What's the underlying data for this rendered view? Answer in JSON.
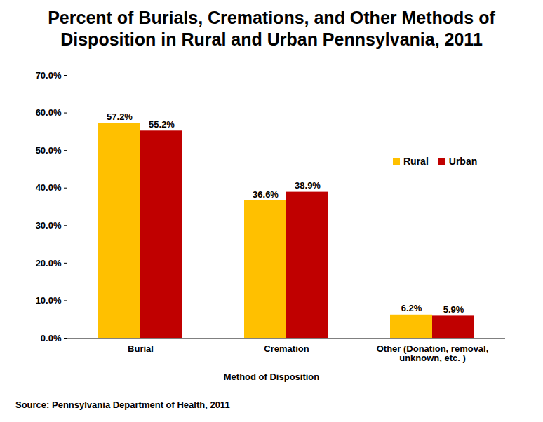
{
  "chart_data": {
    "type": "bar",
    "title": "Percent of Burials, Cremations, and Other Methods of Disposition in Rural and Urban Pennsylvania, 2011",
    "x_label": "Method of Disposition",
    "caption": "Source: Pennsylvania Department of Health, 2011",
    "categories": [
      "Burial",
      "Cremation",
      "Other (Donation, removal, unknown, etc. )"
    ],
    "series": [
      {
        "name": "Rural",
        "color": "#FFC000",
        "values": [
          57.2,
          36.6,
          6.2
        ],
        "value_labels": [
          "57.2%",
          "36.6%",
          "6.2%"
        ]
      },
      {
        "name": "Urban",
        "color": "#C00000",
        "values": [
          55.2,
          38.9,
          5.9
        ],
        "value_labels": [
          "55.2%",
          "38.9%",
          "5.9%"
        ]
      }
    ],
    "ylim": [
      0,
      70
    ],
    "yticks": [
      {
        "value": 0,
        "label": "0.0%"
      },
      {
        "value": 10,
        "label": "10.0%"
      },
      {
        "value": 20,
        "label": "20.0%"
      },
      {
        "value": 30,
        "label": "30.0%"
      },
      {
        "value": 40,
        "label": "40.0%"
      },
      {
        "value": 50,
        "label": "50.0%"
      },
      {
        "value": 60,
        "label": "60.0%"
      },
      {
        "value": 70,
        "label": "70.0%"
      }
    ],
    "legend": "right",
    "data_labels": true,
    "grid": false
  }
}
